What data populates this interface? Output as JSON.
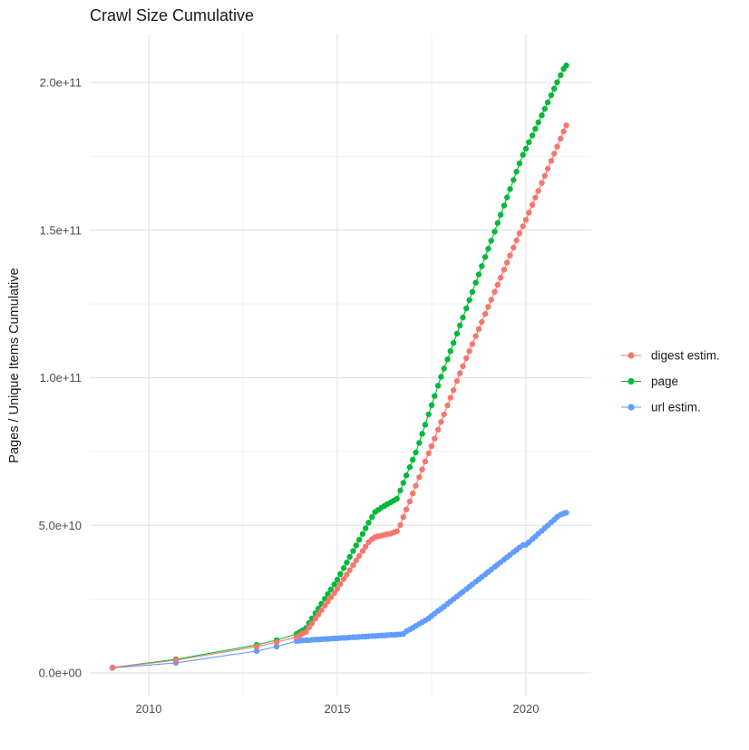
{
  "title": "Crawl Size Cumulative",
  "legend": {
    "items": [
      {
        "label": "digest estim.",
        "color": "#F8766D"
      },
      {
        "label": "page",
        "color": "#00BA38"
      },
      {
        "label": "url estim.",
        "color": "#619CFF"
      }
    ]
  },
  "chart_data": {
    "type": "line",
    "title": "Crawl Size Cumulative",
    "xlabel": "",
    "ylabel": "Pages / Unique Items Cumulative",
    "units": "values are pages/items in billions (1e9)",
    "grid": true,
    "legend_position": "right",
    "xlim": [
      2008.44,
      2021.73
    ],
    "ylim_e9": [
      -8,
      216
    ],
    "x_ticks": {
      "values": [
        2010,
        2015,
        2020
      ],
      "labels": [
        "2010",
        "2015",
        "2020"
      ],
      "minor": [
        2012.5,
        2017.5
      ]
    },
    "y_ticks": {
      "values_e9": [
        0,
        50,
        100,
        150,
        200
      ],
      "labels": [
        "0.0e+00",
        "5.0e+10",
        "1.0e+11",
        "1.5e+11",
        "2.0e+11"
      ],
      "minor_e9": [
        25,
        75,
        125,
        175
      ]
    },
    "x_early": [
      2009.04,
      2010.72,
      2012.86,
      2013.39,
      2013.92
    ],
    "x_monthly": [
      2014.0,
      2014.08,
      2014.17,
      2014.25,
      2014.33,
      2014.42,
      2014.5,
      2014.58,
      2014.67,
      2014.75,
      2014.83,
      2014.92,
      2015.0,
      2015.08,
      2015.17,
      2015.25,
      2015.33,
      2015.42,
      2015.5,
      2015.58,
      2015.67,
      2015.75,
      2015.83,
      2015.92,
      2016.0,
      2016.08,
      2016.17,
      2016.25,
      2016.33,
      2016.42,
      2016.5,
      2016.58,
      2016.67,
      2016.75,
      2016.83,
      2016.92,
      2017.0,
      2017.08,
      2017.17,
      2017.25,
      2017.33,
      2017.42,
      2017.5,
      2017.58,
      2017.67,
      2017.75,
      2017.83,
      2017.92,
      2018.0,
      2018.08,
      2018.17,
      2018.25,
      2018.33,
      2018.42,
      2018.5,
      2018.58,
      2018.67,
      2018.75,
      2018.83,
      2018.92,
      2019.0,
      2019.08,
      2019.17,
      2019.25,
      2019.33,
      2019.42,
      2019.5,
      2019.58,
      2019.67,
      2019.75,
      2019.83,
      2019.92,
      2020.0,
      2020.08,
      2020.17,
      2020.25,
      2020.33,
      2020.42,
      2020.5,
      2020.58,
      2020.67,
      2020.75,
      2020.83,
      2020.92,
      2021.0,
      2021.07
    ],
    "draw_order": [
      "page",
      "url estim.",
      "digest estim."
    ],
    "series": [
      {
        "name": "digest estim.",
        "color": "#F8766D",
        "y_early_e9": [
          1.8,
          4.3,
          8.9,
          10.4,
          12.2
        ],
        "y_monthly_e9": [
          12.7,
          13.3,
          13.9,
          15.4,
          16.8,
          18.4,
          19.8,
          21.2,
          22.8,
          24.2,
          25.6,
          27.1,
          28.5,
          30.1,
          31.8,
          33.3,
          34.8,
          36.5,
          38.1,
          39.6,
          41.3,
          42.8,
          44.3,
          45.3,
          46.0,
          46.3,
          46.5,
          46.8,
          47.0,
          47.2,
          47.6,
          48.0,
          50.1,
          52.8,
          55.4,
          58.1,
          60.8,
          63.4,
          66.3,
          68.9,
          71.6,
          74.4,
          76.8,
          79.4,
          82.4,
          85.0,
          87.6,
          90.6,
          93.2,
          95.8,
          98.9,
          101.5,
          103.9,
          106.6,
          109.0,
          111.4,
          114.1,
          116.5,
          118.9,
          121.6,
          124.0,
          126.4,
          129.1,
          131.5,
          133.9,
          136.6,
          139.0,
          141.4,
          144.1,
          146.5,
          148.9,
          151.3,
          153.5,
          155.9,
          158.6,
          161.0,
          163.3,
          166.0,
          168.4,
          170.8,
          173.5,
          175.9,
          178.3,
          181.0,
          183.4,
          185.5
        ]
      },
      {
        "name": "page",
        "color": "#00BA38",
        "y_early_e9": [
          1.8,
          4.6,
          9.5,
          11.1,
          13.2
        ],
        "y_monthly_e9": [
          13.8,
          14.4,
          15.2,
          16.9,
          18.5,
          20.2,
          21.8,
          23.4,
          25.1,
          26.7,
          28.3,
          30.0,
          31.6,
          33.5,
          35.5,
          37.4,
          39.3,
          41.3,
          43.2,
          45.1,
          47.1,
          49.0,
          50.9,
          52.8,
          54.5,
          55.2,
          56.0,
          56.6,
          57.2,
          57.8,
          58.4,
          59.0,
          61.8,
          64.4,
          66.9,
          69.7,
          72.2,
          74.7,
          77.9,
          81.0,
          84.1,
          87.6,
          90.7,
          93.8,
          97.3,
          100.3,
          103.1,
          106.2,
          109.0,
          111.8,
          114.9,
          117.7,
          120.4,
          123.5,
          126.3,
          129.1,
          132.2,
          135.0,
          137.8,
          140.9,
          143.7,
          146.4,
          149.5,
          152.4,
          155.2,
          158.3,
          161.1,
          163.9,
          167.0,
          169.8,
          172.6,
          175.5,
          177.6,
          179.8,
          182.1,
          184.3,
          186.5,
          188.9,
          191.1,
          193.3,
          195.7,
          197.9,
          200.1,
          202.5,
          204.6,
          205.8
        ]
      },
      {
        "name": "url estim.",
        "color": "#619CFF",
        "y_early_e9": [
          1.7,
          3.4,
          7.4,
          8.9,
          10.8
        ],
        "y_monthly_e9": [
          10.9,
          11.0,
          11.1,
          11.1,
          11.2,
          11.3,
          11.3,
          11.4,
          11.5,
          11.5,
          11.6,
          11.7,
          11.7,
          11.8,
          11.9,
          11.9,
          12.0,
          12.1,
          12.1,
          12.2,
          12.3,
          12.3,
          12.4,
          12.5,
          12.5,
          12.6,
          12.7,
          12.7,
          12.8,
          12.9,
          12.9,
          13.0,
          13.1,
          13.2,
          14.1,
          14.7,
          15.3,
          15.9,
          16.6,
          17.2,
          17.8,
          18.5,
          19.3,
          20.1,
          21.0,
          21.7,
          22.5,
          23.4,
          24.2,
          25.0,
          25.9,
          26.7,
          27.5,
          28.4,
          29.2,
          30.0,
          30.9,
          31.7,
          32.5,
          33.4,
          34.2,
          35.0,
          35.9,
          36.7,
          37.5,
          38.4,
          39.2,
          40.0,
          40.9,
          41.7,
          42.5,
          43.3,
          43.4,
          44.3,
          45.3,
          46.2,
          47.2,
          48.1,
          49.1,
          50.0,
          51.0,
          51.9,
          52.9,
          53.6,
          54.0,
          54.3
        ]
      }
    ]
  },
  "style": {
    "background": "#ffffff",
    "grid_major_color": "#e4e4e4",
    "grid_minor_color": "#f0f0f0",
    "tick_label_color": "#4d4d4d",
    "text_color": "#1a1a1a"
  }
}
